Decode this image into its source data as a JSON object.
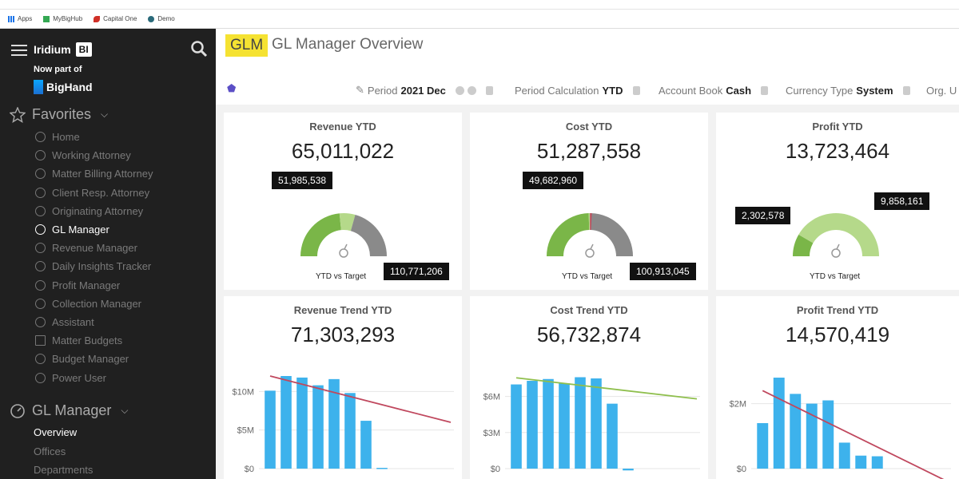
{
  "bookmarks": {
    "apps": "Apps",
    "mybighub": "MyBigHub",
    "capitalone": "Capital One",
    "demo": "Demo"
  },
  "brand": {
    "name": "Iridium",
    "badge": "BI",
    "now_part": "Now part of",
    "bighand": "BigHand"
  },
  "favorites": {
    "title": "Favorites"
  },
  "nav": [
    {
      "label": "Home",
      "icon": "home-icon"
    },
    {
      "label": "Working Attorney",
      "icon": "gauge-icon"
    },
    {
      "label": "Matter Billing Attorney",
      "icon": "gauge-icon"
    },
    {
      "label": "Client Resp. Attorney",
      "icon": "gauge-icon"
    },
    {
      "label": "Originating Attorney",
      "icon": "gauge-icon"
    },
    {
      "label": "GL Manager",
      "icon": "gauge-icon"
    },
    {
      "label": "Revenue Manager",
      "icon": "gauge-icon"
    },
    {
      "label": "Daily Insights Tracker",
      "icon": "gauge-icon"
    },
    {
      "label": "Profit Manager",
      "icon": "gauge-icon"
    },
    {
      "label": "Collection Manager",
      "icon": "gauge-icon"
    },
    {
      "label": "Assistant",
      "icon": "gauge-icon"
    },
    {
      "label": "Matter Budgets",
      "icon": "grid-icon"
    },
    {
      "label": "Budget Manager",
      "icon": "gauge-icon"
    },
    {
      "label": "Power User",
      "icon": "gear-icon"
    }
  ],
  "gl_section": {
    "title": "GL Manager",
    "items": [
      "Overview",
      "Offices",
      "Departments"
    ]
  },
  "header": {
    "badge": "GLM",
    "title": "GL Manager Overview"
  },
  "filters": {
    "period_label": "Period",
    "period_value": "2021 Dec",
    "calc_label": "Period Calculation",
    "calc_value": "YTD",
    "book_label": "Account Book",
    "book_value": "Cash",
    "currency_label": "Currency Type",
    "currency_value": "System",
    "org_label": "Org. U"
  },
  "cards": {
    "revenue": {
      "title": "Revenue YTD",
      "value": "65,011,022",
      "left_tag": "51,985,538",
      "right_tag": "110,771,206",
      "label": "YTD vs Target"
    },
    "cost": {
      "title": "Cost YTD",
      "value": "51,287,558",
      "left_tag": "49,682,960",
      "right_tag": "100,913,045",
      "label": "YTD vs Target"
    },
    "profit": {
      "title": "Profit YTD",
      "value": "13,723,464",
      "left_tag": "2,302,578",
      "right_tag": "9,858,161",
      "label": "YTD vs Target"
    }
  },
  "trends": {
    "revenue": {
      "title": "Revenue Trend YTD",
      "value": "71,303,293"
    },
    "cost": {
      "title": "Cost Trend YTD",
      "value": "56,732,874"
    },
    "profit": {
      "title": "Profit Trend YTD",
      "value": "14,570,419"
    }
  },
  "chart_data": [
    {
      "type": "bar",
      "title": "Revenue Trend YTD",
      "ylim": [
        0,
        12000000
      ],
      "ticks": [
        "$0",
        "$5M",
        "$10M"
      ],
      "tick_values": [
        0,
        5000000,
        10000000
      ],
      "values": [
        10100000,
        12000000,
        11800000,
        10800000,
        11600000,
        9800000,
        6200000,
        100000,
        0,
        0,
        0,
        0
      ],
      "trendline": [
        12000000,
        6000000
      ],
      "bar_color": "#3db2ec",
      "trend_color": "#c0485e"
    },
    {
      "type": "bar",
      "title": "Cost Trend YTD",
      "ylim": [
        0,
        7700000
      ],
      "ticks": [
        "$0",
        "$3M",
        "$6M"
      ],
      "tick_values": [
        0,
        3000000,
        6000000
      ],
      "values": [
        7000000,
        7300000,
        7450000,
        7100000,
        7600000,
        7500000,
        5400000,
        -150000,
        0,
        0,
        0,
        0
      ],
      "trendline": [
        7550000,
        5800000
      ],
      "bar_color": "#3db2ec",
      "trend_color": "#8fbf4d"
    },
    {
      "type": "bar",
      "title": "Profit Trend YTD",
      "ylim": [
        0,
        2850000
      ],
      "ticks": [
        "$0",
        "$2M"
      ],
      "tick_values": [
        0,
        2000000
      ],
      "values": [
        1400000,
        2800000,
        2300000,
        2000000,
        2100000,
        800000,
        400000,
        380000,
        0,
        0,
        0,
        0
      ],
      "trendline": [
        2400000,
        -400000
      ],
      "bar_color": "#3db2ec",
      "trend_color": "#c0485e"
    }
  ],
  "gauges": [
    {
      "ytd": 65011022,
      "mid": 51985538,
      "target": 110771206
    },
    {
      "ytd": 51287558,
      "mid": 49682960,
      "target": 100913045
    },
    {
      "ytd": 13723464,
      "mid": 2302578,
      "target": 9858161
    }
  ]
}
